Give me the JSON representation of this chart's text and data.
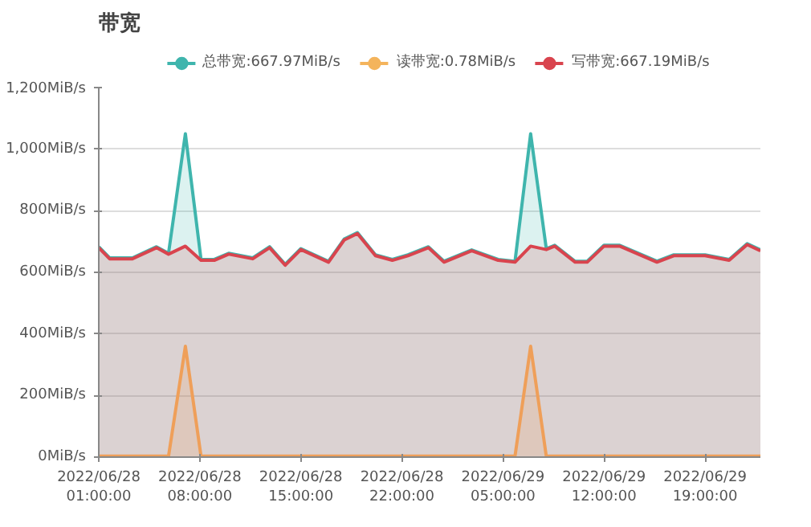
{
  "chart_data": {
    "type": "area",
    "title": "带宽",
    "x": [
      "2022-06-28T01:00",
      "2022-06-28T01:45",
      "2022-06-28T03:20",
      "2022-06-28T05:00",
      "2022-06-28T05:50",
      "2022-06-28T07:00",
      "2022-06-28T08:05",
      "2022-06-28T09:00",
      "2022-06-28T10:00",
      "2022-06-28T11:40",
      "2022-06-28T12:50",
      "2022-06-28T13:55",
      "2022-06-28T15:00",
      "2022-06-28T16:55",
      "2022-06-28T18:00",
      "2022-06-28T18:55",
      "2022-06-28T20:10",
      "2022-06-28T21:20",
      "2022-06-28T22:25",
      "2022-06-28T23:50",
      "2022-06-29T00:55",
      "2022-06-29T02:50",
      "2022-06-29T04:40",
      "2022-06-29T05:50",
      "2022-06-29T06:55",
      "2022-06-29T08:00",
      "2022-06-29T08:35",
      "2022-06-29T10:00",
      "2022-06-29T10:50",
      "2022-06-29T12:00",
      "2022-06-29T13:05",
      "2022-06-29T15:40",
      "2022-06-29T16:50",
      "2022-06-29T19:00",
      "2022-06-29T20:40",
      "2022-06-29T21:55",
      "2022-06-29T22:50"
    ],
    "series": [
      {
        "name": "总带宽:667.97MiB/s",
        "color": "#3fb5ad",
        "values": [
          683,
          647,
          647,
          683,
          662,
          1050,
          642,
          642,
          662,
          647,
          683,
          626,
          677,
          636,
          708,
          729,
          657,
          642,
          657,
          683,
          636,
          673,
          642,
          636,
          1050,
          677,
          688,
          636,
          636,
          688,
          688,
          636,
          657,
          657,
          642,
          693,
          673
        ]
      },
      {
        "name": "读带宽:0.78MiB/s",
        "color": "#f4b45c",
        "values": [
          3,
          3,
          3,
          3,
          3,
          360,
          3,
          3,
          3,
          3,
          3,
          3,
          3,
          3,
          3,
          3,
          3,
          3,
          3,
          3,
          3,
          3,
          3,
          3,
          360,
          3,
          3,
          3,
          3,
          3,
          3,
          3,
          3,
          3,
          3,
          3,
          3
        ]
      },
      {
        "name": "写带宽:667.19MiB/s",
        "color": "#d9444e",
        "values": [
          680,
          644,
          644,
          680,
          659,
          685,
          639,
          639,
          659,
          644,
          680,
          623,
          674,
          633,
          705,
          726,
          654,
          639,
          654,
          680,
          633,
          670,
          639,
          633,
          685,
          674,
          685,
          633,
          633,
          685,
          685,
          633,
          654,
          654,
          639,
          690,
          670
        ]
      }
    ],
    "xlim": [
      "2022-06-28T01:00",
      "2022-06-29T22:50"
    ],
    "xticks": [
      {
        "value": "2022-06-28T01:00",
        "label": "2022/06/28 01:00:00"
      },
      {
        "value": "2022-06-28T08:00",
        "label": "2022/06/28 08:00:00"
      },
      {
        "value": "2022-06-28T15:00",
        "label": "2022/06/28 15:00:00"
      },
      {
        "value": "2022-06-28T22:00",
        "label": "2022/06/28 22:00:00"
      },
      {
        "value": "2022-06-29T05:00",
        "label": "2022/06/29 05:00:00"
      },
      {
        "value": "2022-06-29T12:00",
        "label": "2022/06/29 12:00:00"
      },
      {
        "value": "2022-06-29T19:00",
        "label": "2022/06/29 19:00:00"
      }
    ],
    "ylim": [
      0,
      1200
    ],
    "yticks": [
      {
        "value": 0,
        "label": "0MiB/s"
      },
      {
        "value": 200,
        "label": "200MiB/s"
      },
      {
        "value": 400,
        "label": "400MiB/s"
      },
      {
        "value": 600,
        "label": "600MiB/s"
      },
      {
        "value": 800,
        "label": "800MiB/s"
      },
      {
        "value": 1000,
        "label": "1,000MiB/s"
      },
      {
        "value": 1200,
        "label": "1,200MiB/s"
      }
    ],
    "grid": "y",
    "legend": "top"
  }
}
